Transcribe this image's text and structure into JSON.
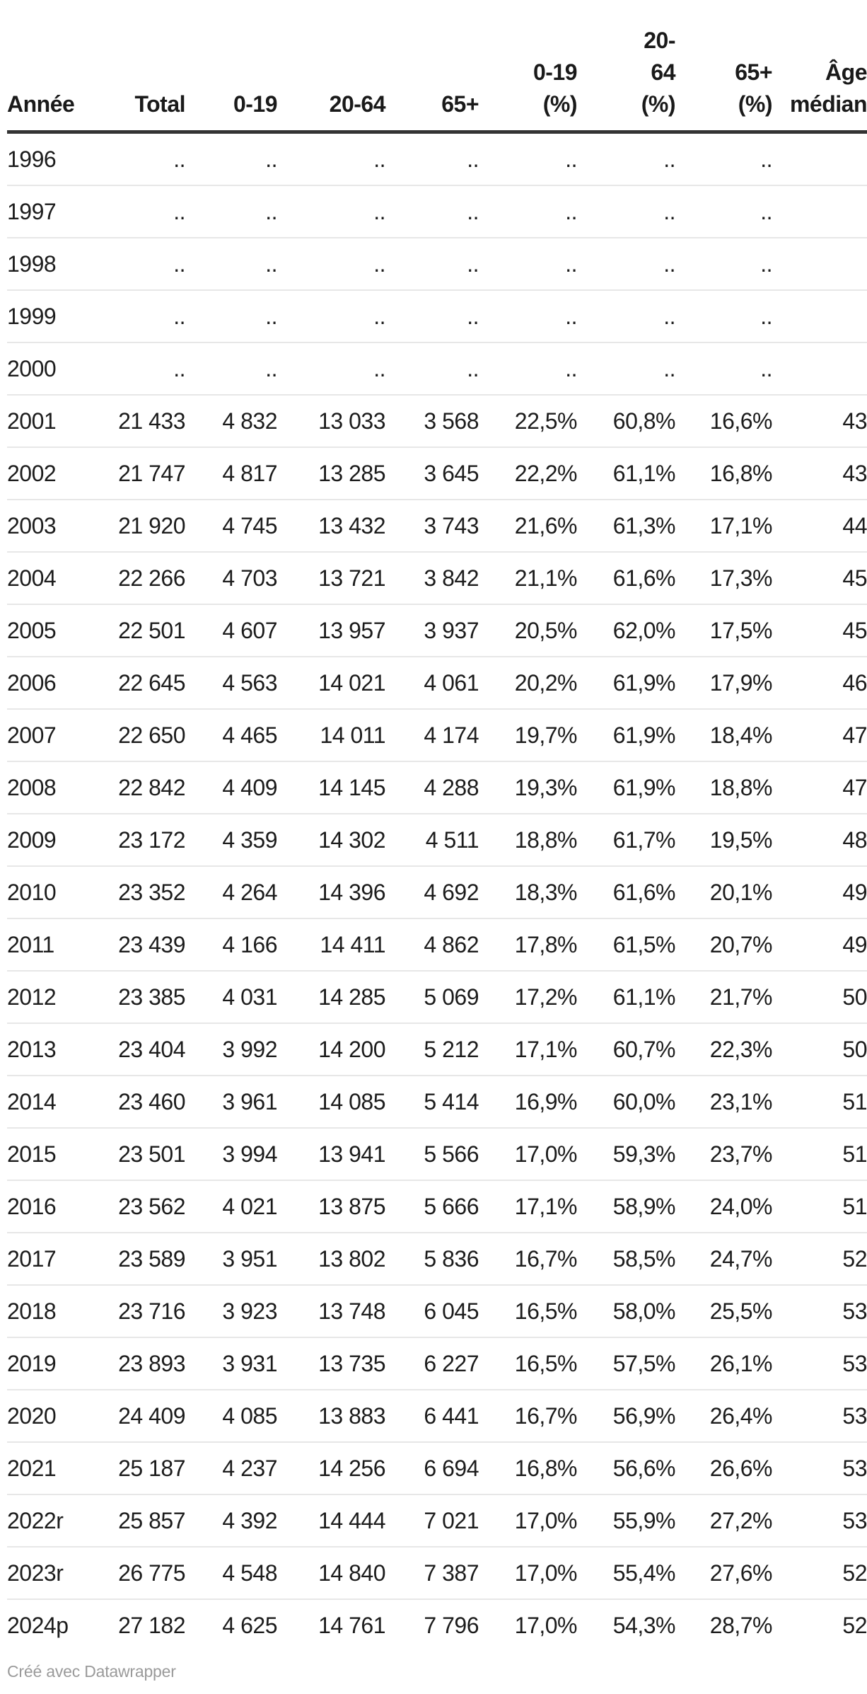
{
  "colors": {
    "background": "#ffffff",
    "text": "#1c1c1c",
    "header_rule": "#333333",
    "row_rule": "#e7e7e7",
    "footer_text": "#9a9a9a"
  },
  "chart_data": {
    "type": "table",
    "title": "",
    "columns": [
      "Année",
      "Total",
      "0-19",
      "20-64",
      "65+",
      "0-19 (%)",
      "20-64 (%)",
      "65+ (%)",
      "Âge médian"
    ],
    "header_lines": [
      "Année",
      "Total",
      "0-19",
      "20-64",
      "65+",
      "0-19\n(%)",
      "20-\n64\n(%)",
      "65+\n(%)",
      "Âge\nmédian"
    ],
    "missing_value_marker": "..",
    "rows": [
      [
        "1996",
        "..",
        "..",
        "..",
        "..",
        "..",
        "..",
        "..",
        ""
      ],
      [
        "1997",
        "..",
        "..",
        "..",
        "..",
        "..",
        "..",
        "..",
        ""
      ],
      [
        "1998",
        "..",
        "..",
        "..",
        "..",
        "..",
        "..",
        "..",
        ""
      ],
      [
        "1999",
        "..",
        "..",
        "..",
        "..",
        "..",
        "..",
        "..",
        ""
      ],
      [
        "2000",
        "..",
        "..",
        "..",
        "..",
        "..",
        "..",
        "..",
        ""
      ],
      [
        "2001",
        "21 433",
        "4 832",
        "13 033",
        "3 568",
        "22,5%",
        "60,8%",
        "16,6%",
        "43"
      ],
      [
        "2002",
        "21 747",
        "4 817",
        "13 285",
        "3 645",
        "22,2%",
        "61,1%",
        "16,8%",
        "43"
      ],
      [
        "2003",
        "21 920",
        "4 745",
        "13 432",
        "3 743",
        "21,6%",
        "61,3%",
        "17,1%",
        "44"
      ],
      [
        "2004",
        "22 266",
        "4 703",
        "13 721",
        "3 842",
        "21,1%",
        "61,6%",
        "17,3%",
        "45"
      ],
      [
        "2005",
        "22 501",
        "4 607",
        "13 957",
        "3 937",
        "20,5%",
        "62,0%",
        "17,5%",
        "45"
      ],
      [
        "2006",
        "22 645",
        "4 563",
        "14 021",
        "4 061",
        "20,2%",
        "61,9%",
        "17,9%",
        "46"
      ],
      [
        "2007",
        "22 650",
        "4 465",
        "14 011",
        "4 174",
        "19,7%",
        "61,9%",
        "18,4%",
        "47"
      ],
      [
        "2008",
        "22 842",
        "4 409",
        "14 145",
        "4 288",
        "19,3%",
        "61,9%",
        "18,8%",
        "47"
      ],
      [
        "2009",
        "23 172",
        "4 359",
        "14 302",
        "4 511",
        "18,8%",
        "61,7%",
        "19,5%",
        "48"
      ],
      [
        "2010",
        "23 352",
        "4 264",
        "14 396",
        "4 692",
        "18,3%",
        "61,6%",
        "20,1%",
        "49"
      ],
      [
        "2011",
        "23 439",
        "4 166",
        "14 411",
        "4 862",
        "17,8%",
        "61,5%",
        "20,7%",
        "49"
      ],
      [
        "2012",
        "23 385",
        "4 031",
        "14 285",
        "5 069",
        "17,2%",
        "61,1%",
        "21,7%",
        "50"
      ],
      [
        "2013",
        "23 404",
        "3 992",
        "14 200",
        "5 212",
        "17,1%",
        "60,7%",
        "22,3%",
        "50"
      ],
      [
        "2014",
        "23 460",
        "3 961",
        "14 085",
        "5 414",
        "16,9%",
        "60,0%",
        "23,1%",
        "51"
      ],
      [
        "2015",
        "23 501",
        "3 994",
        "13 941",
        "5 566",
        "17,0%",
        "59,3%",
        "23,7%",
        "51"
      ],
      [
        "2016",
        "23 562",
        "4 021",
        "13 875",
        "5 666",
        "17,1%",
        "58,9%",
        "24,0%",
        "51"
      ],
      [
        "2017",
        "23 589",
        "3 951",
        "13 802",
        "5 836",
        "16,7%",
        "58,5%",
        "24,7%",
        "52"
      ],
      [
        "2018",
        "23 716",
        "3 923",
        "13 748",
        "6 045",
        "16,5%",
        "58,0%",
        "25,5%",
        "53"
      ],
      [
        "2019",
        "23 893",
        "3 931",
        "13 735",
        "6 227",
        "16,5%",
        "57,5%",
        "26,1%",
        "53"
      ],
      [
        "2020",
        "24 409",
        "4 085",
        "13 883",
        "6 441",
        "16,7%",
        "56,9%",
        "26,4%",
        "53"
      ],
      [
        "2021",
        "25 187",
        "4 237",
        "14 256",
        "6 694",
        "16,8%",
        "56,6%",
        "26,6%",
        "53"
      ],
      [
        "2022r",
        "25 857",
        "4 392",
        "14 444",
        "7 021",
        "17,0%",
        "55,9%",
        "27,2%",
        "53"
      ],
      [
        "2023r",
        "26 775",
        "4 548",
        "14 840",
        "7 387",
        "17,0%",
        "55,4%",
        "27,6%",
        "52"
      ],
      [
        "2024p",
        "27 182",
        "4 625",
        "14 761",
        "7 796",
        "17,0%",
        "54,3%",
        "28,7%",
        "52"
      ]
    ],
    "layout": {
      "first_column_align": "left",
      "other_columns_align": "right",
      "header_vertical_align": "bottom",
      "right_edge_clipped": true
    }
  },
  "footer": {
    "credit_text": "Créé avec Datawrapper"
  }
}
